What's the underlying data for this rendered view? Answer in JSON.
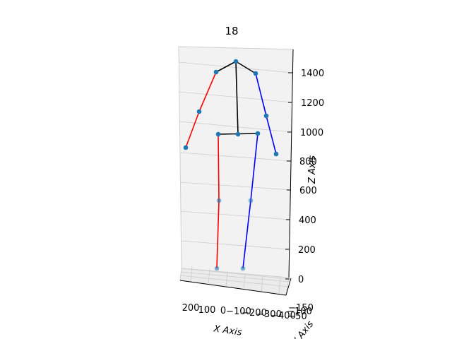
{
  "chart_data": {
    "type": "scatter",
    "title": "18",
    "xlabel": "X Axis",
    "ylabel": "Y Axis",
    "zlabel": "Z Axis",
    "z_ticks": [
      "0",
      "200",
      "400",
      "600",
      "800",
      "1000",
      "1200",
      "1400"
    ],
    "x_ticks": [
      "200",
      "100",
      "0",
      "−100",
      "−200",
      "−300",
      "−400"
    ],
    "y_ticks": [
      "−150",
      "−100",
      "−50"
    ],
    "joints": [
      {
        "name": "head-top"
      },
      {
        "name": "shoulder-right"
      },
      {
        "name": "elbow-right"
      },
      {
        "name": "wrist-right"
      },
      {
        "name": "shoulder-left"
      },
      {
        "name": "elbow-left"
      },
      {
        "name": "wrist-left"
      },
      {
        "name": "hip-center"
      },
      {
        "name": "hip-right"
      },
      {
        "name": "hip-left"
      },
      {
        "name": "knee-right"
      },
      {
        "name": "ankle-right"
      },
      {
        "name": "knee-left"
      },
      {
        "name": "ankle-left"
      }
    ],
    "bones": [
      {
        "from": 0,
        "to": 1,
        "color": "#000000"
      },
      {
        "from": 0,
        "to": 4,
        "color": "#000000"
      },
      {
        "from": 0,
        "to": 7,
        "color": "#000000"
      },
      {
        "from": 8,
        "to": 9,
        "color": "#000000"
      },
      {
        "from": 1,
        "to": 2,
        "color": "#ff0000"
      },
      {
        "from": 2,
        "to": 3,
        "color": "#ff0000"
      },
      {
        "from": 8,
        "to": 10,
        "color": "#ff0000"
      },
      {
        "from": 10,
        "to": 11,
        "color": "#ff0000"
      },
      {
        "from": 4,
        "to": 5,
        "color": "#0000ff"
      },
      {
        "from": 5,
        "to": 6,
        "color": "#0000ff"
      },
      {
        "from": 9,
        "to": 12,
        "color": "#0000ff"
      },
      {
        "from": 12,
        "to": 13,
        "color": "#0000ff"
      }
    ],
    "colors": {
      "marker": "#1f77b4",
      "pane": "#f2f2f2",
      "grid": "#cccccc"
    }
  }
}
